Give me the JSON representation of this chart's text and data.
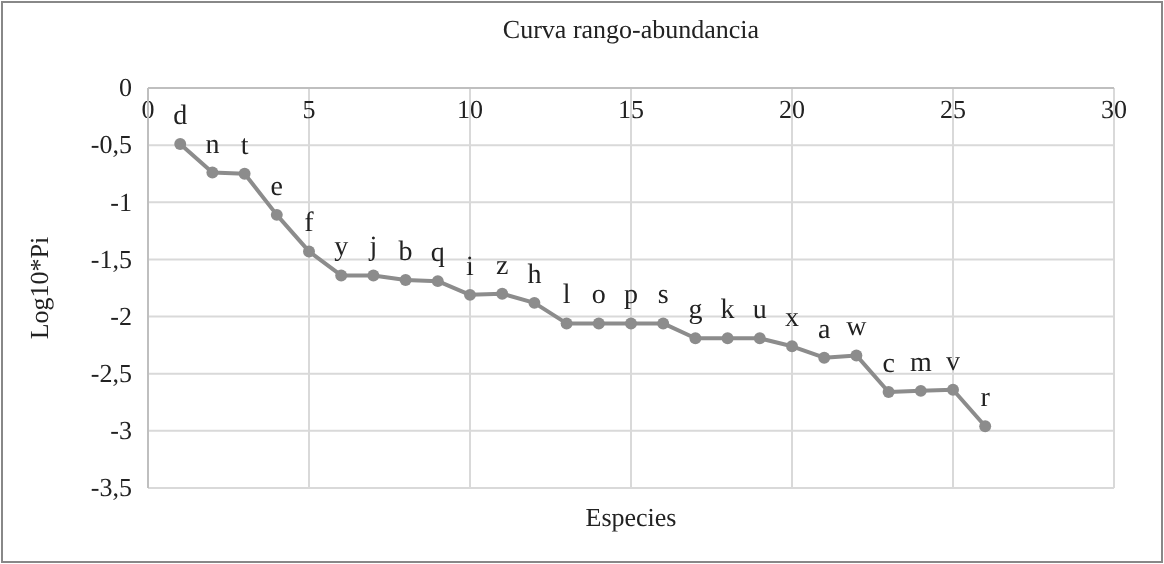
{
  "chart_data": {
    "type": "line",
    "title": "Curva rango-abundancia",
    "xlabel": "Especies",
    "ylabel": "Log10*Pi",
    "x": [
      1,
      2,
      3,
      4,
      5,
      6,
      7,
      8,
      9,
      10,
      11,
      12,
      13,
      14,
      15,
      16,
      17,
      18,
      19,
      20,
      21,
      22,
      23,
      24,
      25,
      26
    ],
    "series": [
      {
        "color": "#8c8c8c",
        "values": [
          -0.49,
          -0.74,
          -0.75,
          -1.11,
          -1.43,
          -1.64,
          -1.64,
          -1.68,
          -1.69,
          -1.81,
          -1.8,
          -1.88,
          -2.06,
          -2.06,
          -2.06,
          -2.06,
          -2.19,
          -2.19,
          -2.19,
          -2.26,
          -2.36,
          -2.34,
          -2.66,
          -2.65,
          -2.64,
          -2.96
        ],
        "value_labels": [
          "d",
          "n",
          "t",
          "e",
          "f",
          "y",
          "j",
          "b",
          "q",
          "i",
          "z",
          "h",
          "l",
          "o",
          "p",
          "s",
          "g",
          "k",
          "u",
          "x",
          "a",
          "w",
          "c",
          "m",
          "v",
          "r"
        ]
      }
    ],
    "xlim": [
      0,
      30
    ],
    "xticks": [
      0,
      5,
      10,
      15,
      20,
      25,
      30
    ],
    "ylim": [
      -3.5,
      0
    ],
    "yticks": [
      {
        "value": 0,
        "label": "0"
      },
      {
        "value": -0.5,
        "label": "-0,5"
      },
      {
        "value": -1,
        "label": "-1"
      },
      {
        "value": -1.5,
        "label": "-1,5"
      },
      {
        "value": -2,
        "label": "-2"
      },
      {
        "value": -2.5,
        "label": "-2,5"
      },
      {
        "value": -3,
        "label": "-3"
      },
      {
        "value": -3.5,
        "label": "-3,5"
      }
    ],
    "grid": true,
    "marker": "circle",
    "line_style": "solid"
  }
}
